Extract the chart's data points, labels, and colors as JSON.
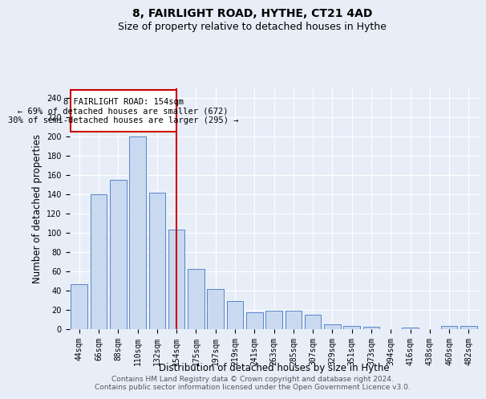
{
  "title": "8, FAIRLIGHT ROAD, HYTHE, CT21 4AD",
  "subtitle": "Size of property relative to detached houses in Hythe",
  "xlabel": "Distribution of detached houses by size in Hythe",
  "ylabel": "Number of detached properties",
  "categories": [
    "44sqm",
    "66sqm",
    "88sqm",
    "110sqm",
    "132sqm",
    "154sqm",
    "175sqm",
    "197sqm",
    "219sqm",
    "241sqm",
    "263sqm",
    "285sqm",
    "307sqm",
    "329sqm",
    "351sqm",
    "373sqm",
    "394sqm",
    "416sqm",
    "438sqm",
    "460sqm",
    "482sqm"
  ],
  "values": [
    46,
    140,
    155,
    200,
    141,
    103,
    62,
    41,
    29,
    17,
    19,
    19,
    15,
    5,
    3,
    2,
    0,
    1,
    0,
    3,
    3
  ],
  "bar_color": "#c9d9f0",
  "bar_edge_color": "#5585c8",
  "highlight_index": 5,
  "highlight_line_color": "#cc0000",
  "annotation_title": "8 FAIRLIGHT ROAD: 154sqm",
  "annotation_line1": "← 69% of detached houses are smaller (672)",
  "annotation_line2": "30% of semi-detached houses are larger (295) →",
  "annotation_box_color": "#ffffff",
  "annotation_box_edge_color": "#cc0000",
  "ylim": [
    0,
    250
  ],
  "yticks": [
    0,
    20,
    40,
    60,
    80,
    100,
    120,
    140,
    160,
    180,
    200,
    220,
    240
  ],
  "footnote1": "Contains HM Land Registry data © Crown copyright and database right 2024.",
  "footnote2": "Contains public sector information licensed under the Open Government Licence v3.0.",
  "background_color": "#e8eef8",
  "plot_bg_color": "#e8eef8",
  "grid_color": "#ffffff",
  "title_fontsize": 10,
  "subtitle_fontsize": 9,
  "axis_label_fontsize": 8.5,
  "tick_fontsize": 7,
  "annotation_fontsize": 7.5,
  "footnote_fontsize": 6.5
}
